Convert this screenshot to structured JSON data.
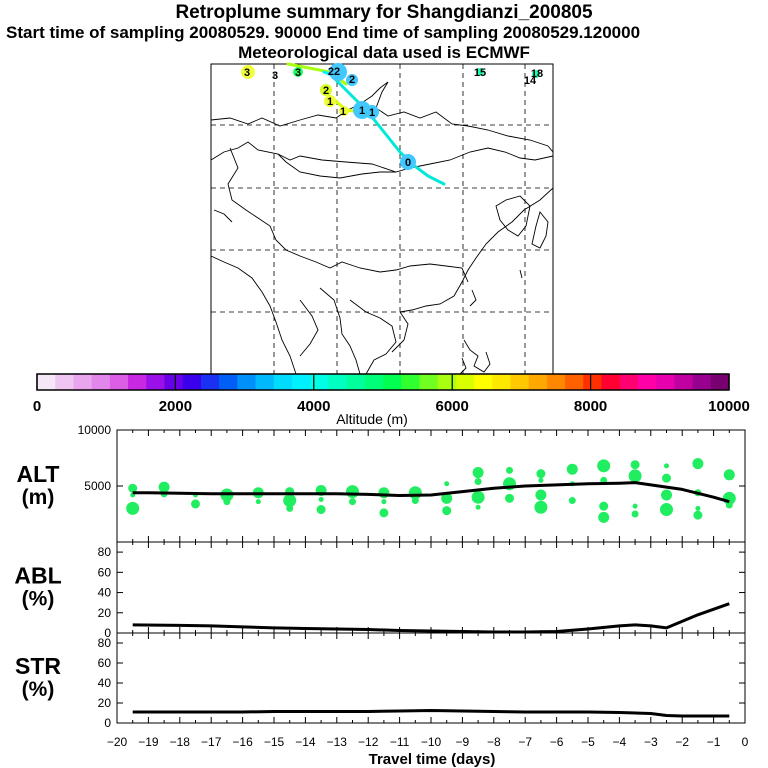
{
  "header": {
    "title": "Retroplume summary for Shangdianzi_200805",
    "sampling_line": "Start time of sampling 20080529. 90000     End time of sampling 20080529.120000",
    "met_line": "Meteorological data used is ECMWF"
  },
  "colorbar": {
    "label": "Altitude (m)",
    "tick_labels": [
      "0",
      "2000",
      "4000",
      "6000",
      "8000",
      "10000"
    ],
    "colors": [
      "#f5e6f8",
      "#efc6f2",
      "#e9a6ee",
      "#e386ea",
      "#dd5ee6",
      "#c828e4",
      "#9a10e6",
      "#6a00e8",
      "#3a00ec",
      "#1a30f2",
      "#0060f6",
      "#0090fa",
      "#00b8fc",
      "#00dcfe",
      "#00f0ff",
      "#00ffe4",
      "#00ffc0",
      "#00ff9c",
      "#00ff78",
      "#00ff50",
      "#30ff30",
      "#70ff20",
      "#a8ff10",
      "#d8ff00",
      "#ffff00",
      "#ffe800",
      "#ffc800",
      "#ffa800",
      "#ff8800",
      "#ff6000",
      "#ff3000",
      "#ff0030",
      "#ff0070",
      "#ff00a8",
      "#e800b0",
      "#c000a0",
      "#980090",
      "#780070"
    ]
  },
  "map": {
    "labels": [
      {
        "text": "3",
        "color": "#e6f000"
      },
      {
        "text": "3",
        "color": "#e05000"
      },
      {
        "text": "3",
        "color": "#10d060"
      },
      {
        "text": "22",
        "color": "#30c8ff"
      },
      {
        "text": "2",
        "color": "#30c8ff"
      },
      {
        "text": "2",
        "color": "#e6f000"
      },
      {
        "text": "1",
        "color": "#f0f000"
      },
      {
        "text": "1",
        "color": "#f0f000"
      },
      {
        "text": "1",
        "color": "#30c8ff"
      },
      {
        "text": "1",
        "color": "#30c8ff"
      },
      {
        "text": "0",
        "color": "#30c8ff"
      },
      {
        "text": "15",
        "color": "#10d0a0"
      },
      {
        "text": "18",
        "color": "#10d0a0"
      },
      {
        "text": "14",
        "color": "#10d060"
      }
    ]
  },
  "panels": {
    "alt_label": "ALT\n(m)",
    "abl_label": "ABL\n(%)",
    "str_label": "STR\n(%)"
  },
  "chart_data": [
    {
      "type": "line",
      "name": "ALT",
      "ylabel": "ALT (m)",
      "ylim": [
        0,
        10000
      ],
      "yticks": [
        5000,
        10000
      ],
      "xlim": [
        -20,
        0
      ],
      "x": [
        -19.5,
        -19,
        -18,
        -17,
        -16,
        -15,
        -14,
        -13,
        -12,
        -11,
        -10,
        -9,
        -8,
        -7,
        -6,
        -5,
        -4,
        -3.5,
        -3,
        -2,
        -1,
        -0.5
      ],
      "values": [
        4400,
        4400,
        4350,
        4300,
        4300,
        4300,
        4300,
        4300,
        4250,
        4150,
        4200,
        4500,
        4800,
        5000,
        5100,
        5200,
        5250,
        5300,
        5100,
        4700,
        4000,
        3600
      ],
      "spread_points": [
        {
          "x": -19.5,
          "y": 4200
        },
        {
          "x": -19.5,
          "y": 4800
        },
        {
          "x": -19.5,
          "y": 3000
        },
        {
          "x": -18.5,
          "y": 4300
        },
        {
          "x": -18.5,
          "y": 4900
        },
        {
          "x": -17.5,
          "y": 4200
        },
        {
          "x": -17.5,
          "y": 3400
        },
        {
          "x": -16.5,
          "y": 4200
        },
        {
          "x": -16.5,
          "y": 3600
        },
        {
          "x": -15.5,
          "y": 4400
        },
        {
          "x": -15.5,
          "y": 3600
        },
        {
          "x": -14.5,
          "y": 4500
        },
        {
          "x": -14.5,
          "y": 3700
        },
        {
          "x": -14.5,
          "y": 3000
        },
        {
          "x": -13.5,
          "y": 4600
        },
        {
          "x": -13.5,
          "y": 3800
        },
        {
          "x": -13.5,
          "y": 2900
        },
        {
          "x": -12.5,
          "y": 4500
        },
        {
          "x": -12.5,
          "y": 3600
        },
        {
          "x": -11.5,
          "y": 4400
        },
        {
          "x": -11.5,
          "y": 3600
        },
        {
          "x": -11.5,
          "y": 2600
        },
        {
          "x": -10.5,
          "y": 4400
        },
        {
          "x": -10.5,
          "y": 3700
        },
        {
          "x": -9.5,
          "y": 3900
        },
        {
          "x": -9.5,
          "y": 5200
        },
        {
          "x": -9.5,
          "y": 2800
        },
        {
          "x": -8.5,
          "y": 4000
        },
        {
          "x": -8.5,
          "y": 5400
        },
        {
          "x": -8.5,
          "y": 6200
        },
        {
          "x": -8.5,
          "y": 3100
        },
        {
          "x": -7.5,
          "y": 3900
        },
        {
          "x": -7.5,
          "y": 5200
        },
        {
          "x": -7.5,
          "y": 6400
        },
        {
          "x": -6.5,
          "y": 4200
        },
        {
          "x": -6.5,
          "y": 5500
        },
        {
          "x": -6.5,
          "y": 6100
        },
        {
          "x": -6.5,
          "y": 3100
        },
        {
          "x": -5.5,
          "y": 3700
        },
        {
          "x": -5.5,
          "y": 6500
        },
        {
          "x": -5.5,
          "y": 5200
        },
        {
          "x": -4.5,
          "y": 3200
        },
        {
          "x": -4.5,
          "y": 6800
        },
        {
          "x": -4.5,
          "y": 5500
        },
        {
          "x": -4.5,
          "y": 2200
        },
        {
          "x": -3.5,
          "y": 3200
        },
        {
          "x": -3.5,
          "y": 6900
        },
        {
          "x": -3.5,
          "y": 5900
        },
        {
          "x": -3.5,
          "y": 2500
        },
        {
          "x": -2.5,
          "y": 4200
        },
        {
          "x": -2.5,
          "y": 6800
        },
        {
          "x": -2.5,
          "y": 5700
        },
        {
          "x": -2.5,
          "y": 2900
        },
        {
          "x": -1.5,
          "y": 4400
        },
        {
          "x": -1.5,
          "y": 7000
        },
        {
          "x": -1.5,
          "y": 3000
        },
        {
          "x": -1.5,
          "y": 2400
        },
        {
          "x": -0.5,
          "y": 3900
        },
        {
          "x": -0.5,
          "y": 3300
        },
        {
          "x": -0.5,
          "y": 6000
        }
      ]
    },
    {
      "type": "line",
      "name": "ABL",
      "ylabel": "ABL (%)",
      "ylim": [
        0,
        90
      ],
      "yticks": [
        0,
        20,
        40,
        60,
        80
      ],
      "xlim": [
        -20,
        0
      ],
      "x": [
        -19.5,
        -18,
        -17,
        -16,
        -15,
        -14,
        -13,
        -12,
        -11,
        -10,
        -9,
        -8,
        -7,
        -6,
        -5,
        -4,
        -3.5,
        -3,
        -2.5,
        -1.5,
        -0.5
      ],
      "values": [
        8,
        7.5,
        7,
        6,
        5,
        4.5,
        4,
        3.5,
        2.5,
        2,
        1.5,
        1,
        1,
        1.5,
        4,
        7,
        8,
        7,
        5,
        18,
        29
      ]
    },
    {
      "type": "line",
      "name": "STR",
      "ylabel": "STR (%)",
      "ylim": [
        0,
        90
      ],
      "yticks": [
        0,
        20,
        40,
        60,
        80
      ],
      "xlabel": "Travel time (days)",
      "xlim": [
        -20,
        0
      ],
      "xticks": [
        -20,
        -19,
        -18,
        -17,
        -16,
        -15,
        -14,
        -13,
        -12,
        -11,
        -10,
        -9,
        -8,
        -7,
        -6,
        -5,
        -4,
        -3,
        -2,
        -1,
        0
      ],
      "xtick_labels": [
        "−20",
        "−19",
        "−18",
        "−17",
        "−16",
        "−15",
        "−14",
        "−13",
        "−12",
        "−11",
        "−10",
        "−9",
        "−8",
        "−7",
        "−6",
        "−5",
        "−4",
        "−3",
        "−2",
        "−1",
        "0"
      ],
      "x": [
        -19.5,
        -18,
        -17,
        -16,
        -15,
        -14,
        -13,
        -12,
        -11,
        -10,
        -9,
        -8,
        -7,
        -6,
        -5,
        -4,
        -3,
        -2.5,
        -2,
        -1,
        -0.5
      ],
      "values": [
        11,
        11,
        11,
        11,
        11.5,
        11.5,
        11.5,
        11.5,
        12,
        12.5,
        12,
        11.5,
        11,
        11,
        11,
        10.5,
        9.5,
        7.5,
        7,
        7,
        7
      ]
    }
  ]
}
